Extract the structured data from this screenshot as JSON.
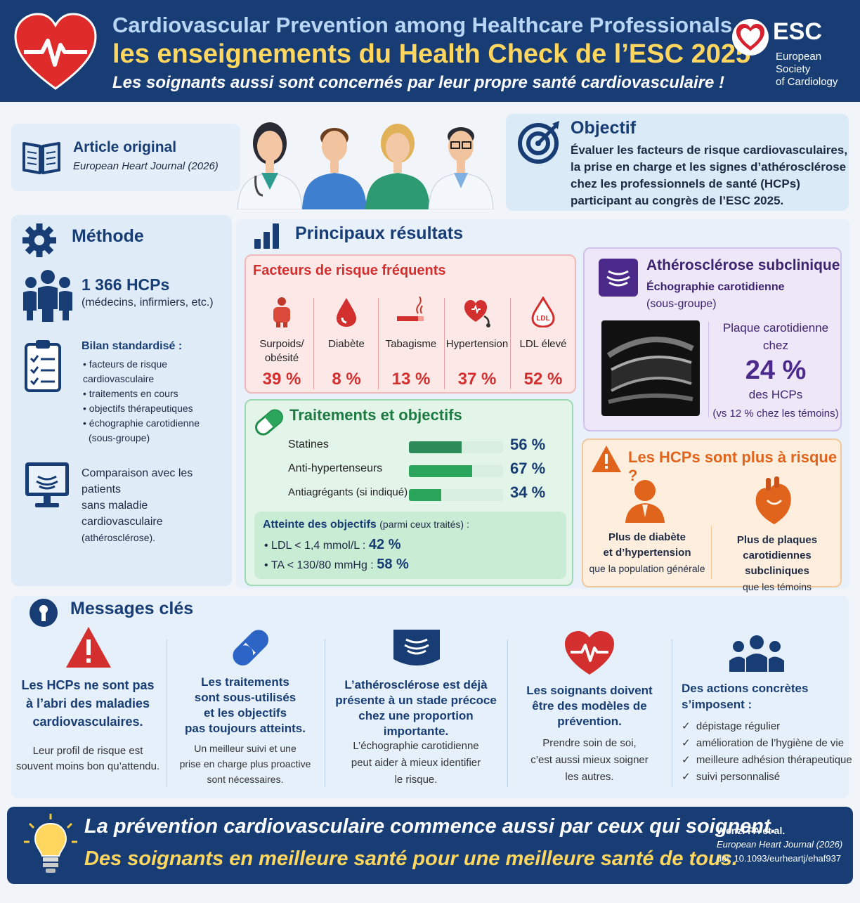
{
  "header": {
    "title_line1": "Cardiovascular Prevention among Healthcare Professionals :",
    "title_line2": "les enseignements du Health Check de l’ESC 2025",
    "subtitle": "Les soignants aussi sont concernés par leur propre santé cardiovasculaire !",
    "logo_text": "ESC",
    "logo_sub1": "European Society",
    "logo_sub2": "of Cardiology"
  },
  "article": {
    "title": "Article original",
    "journal": "European Heart Journal (2026)"
  },
  "objectif": {
    "title": "Objectif",
    "lines": [
      "Évaluer les facteurs de risque cardiovasculaires,",
      "la prise en charge et les signes d’athérosclérose",
      "chez les professionnels de santé (HCPs)",
      "participant au congrès de l’ESC 2025."
    ]
  },
  "methode": {
    "title": "Méthode",
    "count": "1 366 HCPs",
    "count_sub": "(médecins, infirmiers, etc.)",
    "bilan_title": "Bilan standardisé :",
    "bilan_items": [
      "• facteurs de risque cardiovasculaire",
      "• traitements en cours",
      "• objectifs thérapeutiques",
      "• échographie carotidienne",
      "(sous-groupe)"
    ],
    "comparaison": [
      "Comparaison avec les patients",
      "sans maladie cardiovasculaire",
      "(athérosclérose)."
    ]
  },
  "resultats": {
    "title": "Principaux résultats",
    "risk_title": "Facteurs de risque fréquents",
    "risks": [
      {
        "label1": "Surpoids/",
        "label2": "obésité",
        "value": "39 %",
        "icon": "body-icon"
      },
      {
        "label1": "Diabète",
        "label2": "",
        "value": "8 %",
        "icon": "blood-drop-icon"
      },
      {
        "label1": "Tabagisme",
        "label2": "",
        "value": "13 %",
        "icon": "cigarette-icon"
      },
      {
        "label1": "Hypertension",
        "label2": "",
        "value": "37 %",
        "icon": "heart-stethoscope-icon"
      },
      {
        "label1": "LDL élevé",
        "label2": "",
        "value": "52 %",
        "icon": "ldl-drop-icon"
      }
    ],
    "treat_title": "Traitements et objectifs",
    "treatments": [
      {
        "name": "Statines",
        "pct": "56 %",
        "fraction": 0.56
      },
      {
        "name": "Anti-hypertenseurs",
        "pct": "67 %",
        "fraction": 0.67
      },
      {
        "name": "Antiagrégants (si indiqué)",
        "pct": "34 %",
        "fraction": 0.34
      }
    ],
    "goals_title": "Atteinte des objectifs",
    "goals_title_sub": "(parmi ceux traités) :",
    "goals": [
      {
        "label": "•  LDL < 1,4 mmol/L : ",
        "value": "42 %"
      },
      {
        "label": "•  TA < 130/80 mmHg : ",
        "value": "58 %"
      }
    ]
  },
  "athero": {
    "title": "Athérosclérose subclinique",
    "sub": "Échographie carotidienne",
    "sub2": "(sous-groupe)",
    "plaque1": "Plaque carotidienne",
    "plaque2": "chez",
    "value": "24 %",
    "plaque3": "des HCPs",
    "plaque4": "(vs 12 % chez les témoins)"
  },
  "risque": {
    "title": "Les HCPs sont plus à risque ?",
    "left1": "Plus de diabète",
    "left2": "et d’hypertension",
    "left3": "que la population générale",
    "right1": "Plus de plaques",
    "right2": "carotidiennes subcliniques",
    "right3": "que les témoins"
  },
  "messages": {
    "title": "Messages clés",
    "items": [
      {
        "t": [
          "Les HCPs ne sont pas",
          "à l’abri des maladies",
          "cardiovasculaires."
        ],
        "b": [
          "Leur profil de risque est",
          "souvent moins bon qu’attendu."
        ]
      },
      {
        "t": [
          "Les traitements",
          "sont sous-utilisés",
          "et les objectifs",
          "pas toujours atteints."
        ],
        "b": [
          "Un meilleur suivi et une",
          "prise en charge plus proactive",
          "sont nécessaires."
        ]
      },
      {
        "t": [
          "L’athérosclérose est déjà",
          "présente à un stade précoce",
          "chez une proportion importante."
        ],
        "b": [
          "L’échographie carotidienne",
          "peut aider à mieux identifier",
          "le risque."
        ]
      },
      {
        "t": [
          "Les soignants doivent",
          "être des modèles de prévention."
        ],
        "b": [
          "Prendre soin de soi,",
          "c’est aussi mieux soigner",
          "les autres."
        ]
      },
      {
        "t": [
          "Des actions concrètes",
          "s’imposent :"
        ],
        "b": [
          "dépistage régulier",
          "amélioration de l’hygiène de vie",
          "meilleure adhésion thérapeutique",
          "suivi personnalisé"
        ]
      }
    ]
  },
  "footer": {
    "line1": "La prévention cardiovasculaire commence aussi par ceux qui soignent.",
    "line2": "Des soignants en meilleure santé pour une meilleure santé de tous.",
    "ref1": "Wenzl FA et al.",
    "ref2": "European Heart Journal (2026)",
    "ref3": "doi: 10.1093/eurheartj/ehaf937"
  },
  "colors": {
    "navy": "#173d74",
    "red": "#d32f2f",
    "green": "#2ba45c",
    "purple": "#4b2a8c",
    "orange": "#e1641c",
    "yellow": "#ffd75e"
  }
}
